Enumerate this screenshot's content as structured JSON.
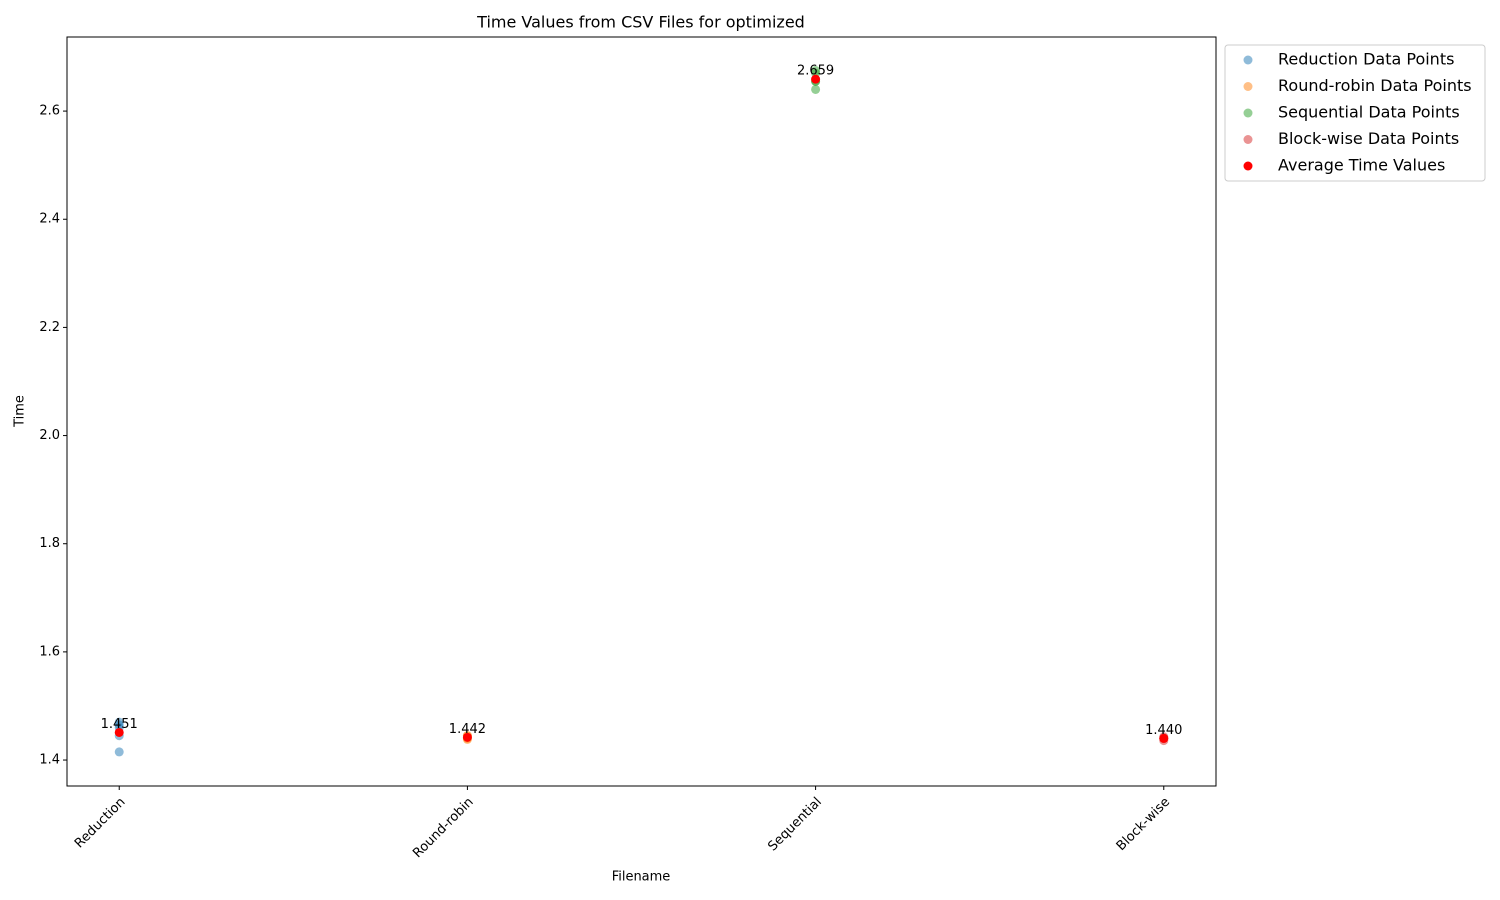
{
  "chart_data": {
    "type": "scatter",
    "title": "Time Values from CSV Files for optimized",
    "x_label": "Filename",
    "y_label": "Time",
    "categories": [
      "Reduction",
      "Round-robin",
      "Sequential",
      "Block-wise"
    ],
    "ylim": [
      1.352,
      2.737
    ],
    "yticks": [
      1.4,
      1.6,
      1.8,
      {
        "value": 2,
        "label": "2.0"
      },
      2.2,
      2.4,
      2.6
    ],
    "legend": "outside-upper-right",
    "series": [
      {
        "name": "Reduction Data Points",
        "color": "#1f77b4",
        "alpha": 0.5,
        "x": [
          "Reduction",
          "Reduction",
          "Reduction",
          "Reduction",
          "Reduction"
        ],
        "values": [
          1.415,
          1.465,
          1.47,
          1.46,
          1.445
        ]
      },
      {
        "name": "Round-robin Data Points",
        "color": "#ff7f0e",
        "alpha": 0.5,
        "x": [
          "Round-robin",
          "Round-robin",
          "Round-robin",
          "Round-robin",
          "Round-robin"
        ],
        "values": [
          1.438,
          1.442,
          1.445,
          1.44,
          1.445
        ]
      },
      {
        "name": "Sequential Data Points",
        "color": "#2ca02c",
        "alpha": 0.5,
        "x": [
          "Sequential",
          "Sequential",
          "Sequential",
          "Sequential",
          "Sequential"
        ],
        "values": [
          2.64,
          2.655,
          2.655,
          2.67,
          2.675
        ]
      },
      {
        "name": "Block-wise Data Points",
        "color": "#d62728",
        "alpha": 0.5,
        "x": [
          "Block-wise",
          "Block-wise",
          "Block-wise",
          "Block-wise",
          "Block-wise"
        ],
        "values": [
          1.436,
          1.44,
          1.443,
          1.441,
          1.44
        ]
      },
      {
        "name": "Average Time Values",
        "color": "#ff0000",
        "alpha": 1,
        "x": [
          "Reduction",
          "Round-robin",
          "Sequential",
          "Block-wise"
        ],
        "values": [
          1.451,
          1.442,
          2.659,
          1.44
        ],
        "value_labels": [
          "1.451",
          "1.442",
          "2.659",
          "1.440"
        ]
      }
    ]
  }
}
